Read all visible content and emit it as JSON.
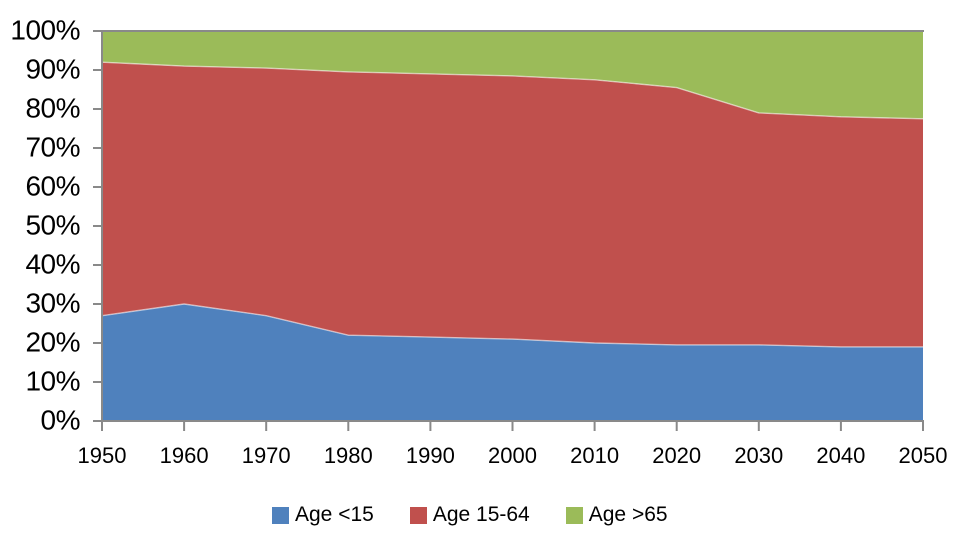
{
  "chart_data": {
    "type": "area",
    "stacked": true,
    "title": "",
    "xlabel": "",
    "ylabel": "",
    "x": [
      1950,
      1960,
      1970,
      1980,
      1990,
      2000,
      2010,
      2020,
      2030,
      2040,
      2050
    ],
    "x_tick_labels": [
      "1950",
      "1960",
      "1970",
      "1980",
      "1990",
      "2000",
      "2010",
      "2020",
      "2030",
      "2040",
      "2050"
    ],
    "y_tick_labels": [
      "0%",
      "10%",
      "20%",
      "30%",
      "40%",
      "50%",
      "60%",
      "70%",
      "80%",
      "90%",
      "100%"
    ],
    "ylim": [
      0,
      100
    ],
    "y_unit": "percent",
    "grid": false,
    "legend_position": "bottom",
    "axis_color": "#898989",
    "text_color": "#000000",
    "background": "#FFFFFF",
    "series": [
      {
        "name": "Age <15",
        "color": "#4F81BD",
        "values": [
          27,
          30,
          27,
          22,
          21.5,
          21,
          20,
          19.5,
          19.5,
          19,
          19
        ]
      },
      {
        "name": "Age 15-64",
        "color": "#C0504D",
        "values": [
          65,
          61,
          63.5,
          67.5,
          67.5,
          67.5,
          67.5,
          66,
          59.5,
          59,
          58.5
        ]
      },
      {
        "name": "Age >65",
        "color": "#9BBB59",
        "values": [
          8,
          9,
          9.5,
          10.5,
          11,
          11.5,
          12.5,
          14.5,
          21,
          22,
          22.5
        ]
      }
    ]
  }
}
